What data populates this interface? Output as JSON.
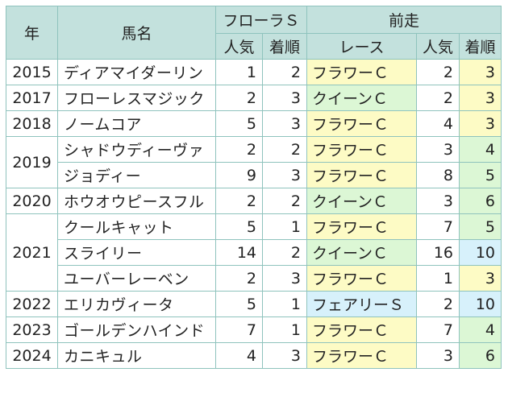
{
  "header": {
    "year": "年",
    "horse": "馬名",
    "flora": "フローラＳ",
    "prev": "前走",
    "pop": "人気",
    "finish": "着順",
    "race": "レース",
    "prev_pop": "人気",
    "prev_finish": "着順"
  },
  "rows": [
    {
      "year": "2015",
      "name": "ディアマイダーリン",
      "pop": "1",
      "fin": "2",
      "race": "フラワーＣ",
      "ppop": "2",
      "pfin": "3",
      "race_color": "#fdfbc5",
      "pfin_color": "#fdfbc5"
    },
    {
      "year": "2017",
      "name": "フローレスマジック",
      "pop": "2",
      "fin": "3",
      "race": "クイーンＣ",
      "ppop": "2",
      "pfin": "3",
      "race_color": "#dcf7d5",
      "pfin_color": "#fdfbc5"
    },
    {
      "year": "2018",
      "name": "ノームコア",
      "pop": "5",
      "fin": "3",
      "race": "フラワーＣ",
      "ppop": "4",
      "pfin": "3",
      "race_color": "#fdfbc5",
      "pfin_color": "#fdfbc5"
    },
    {
      "year": "2019",
      "name": "シャドウディーヴァ",
      "pop": "2",
      "fin": "2",
      "race": "フラワーＣ",
      "ppop": "3",
      "pfin": "4",
      "race_color": "#fdfbc5",
      "pfin_color": "#dcf7d5"
    },
    {
      "year": "",
      "name": "ジョディー",
      "pop": "9",
      "fin": "3",
      "race": "フラワーＣ",
      "ppop": "8",
      "pfin": "5",
      "race_color": "#fdfbc5",
      "pfin_color": "#dcf7d5"
    },
    {
      "year": "2020",
      "name": "ホウオウピースフル",
      "pop": "2",
      "fin": "2",
      "race": "クイーンＣ",
      "ppop": "3",
      "pfin": "6",
      "race_color": "#dcf7d5",
      "pfin_color": "#dcf7d5"
    },
    {
      "year": "2021",
      "name": "クールキャット",
      "pop": "5",
      "fin": "1",
      "race": "フラワーＣ",
      "ppop": "7",
      "pfin": "5",
      "race_color": "#fdfbc5",
      "pfin_color": "#dcf7d5"
    },
    {
      "year": "",
      "name": "スライリー",
      "pop": "14",
      "fin": "2",
      "race": "クイーンＣ",
      "ppop": "16",
      "pfin": "10",
      "race_color": "#dcf7d5",
      "pfin_color": "#d7f1fb"
    },
    {
      "year": "",
      "name": "ユーバーレーベン",
      "pop": "2",
      "fin": "3",
      "race": "フラワーＣ",
      "ppop": "1",
      "pfin": "3",
      "race_color": "#fdfbc5",
      "pfin_color": "#fdfbc5"
    },
    {
      "year": "2022",
      "name": "エリカヴィータ",
      "pop": "5",
      "fin": "1",
      "race": "フェアリーＳ",
      "ppop": "2",
      "pfin": "10",
      "race_color": "#d7f1fb",
      "pfin_color": "#d7f1fb"
    },
    {
      "year": "2023",
      "name": "ゴールデンハインド",
      "pop": "7",
      "fin": "1",
      "race": "フラワーＣ",
      "ppop": "7",
      "pfin": "4",
      "race_color": "#fdfbc5",
      "pfin_color": "#dcf7d5"
    },
    {
      "year": "2024",
      "name": "カニキュル",
      "pop": "4",
      "fin": "3",
      "race": "フラワーＣ",
      "ppop": "3",
      "pfin": "6",
      "race_color": "#fdfbc5",
      "pfin_color": "#dcf7d5"
    }
  ]
}
